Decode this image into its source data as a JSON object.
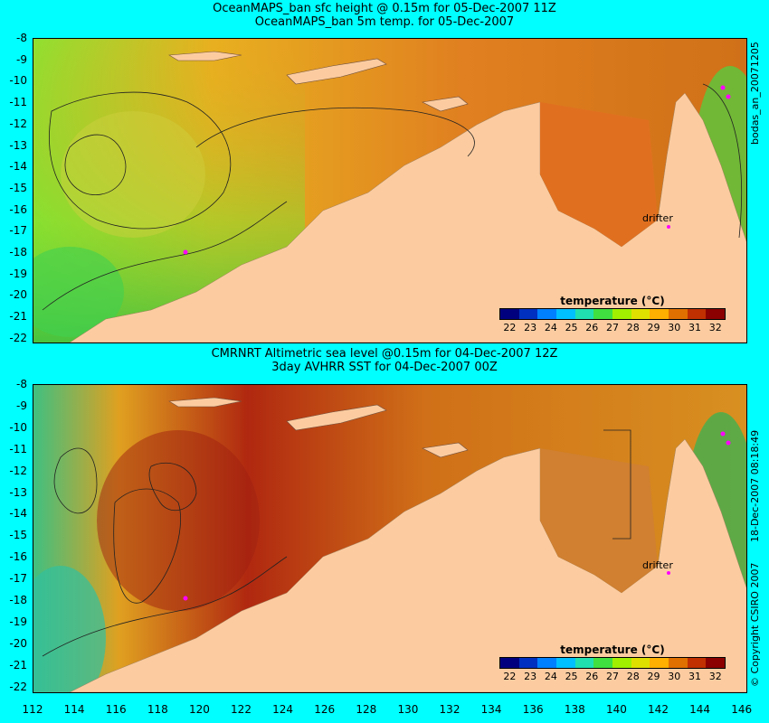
{
  "top_panel": {
    "title1": "OceanMAPS_ban sfc height @ 0.15m for 05-Dec-2007 11Z",
    "title2": "OceanMAPS_ban 5m temp. for 05-Dec-2007",
    "side_text": "bodas_an_20071205",
    "drifter_label": "drifter"
  },
  "bottom_panel": {
    "title1": "CMRNRT Altimetric sea level  @0.15m  for 04-Dec-2007 12Z",
    "title2": "3day AVHRR SST for 04-Dec-2007 00Z",
    "side_text1": "18-Dec-2007 08:18:49",
    "side_text2": "© Copyright CSIRO 2007",
    "drifter_label": "drifter"
  },
  "legend": {
    "title": "temperature (°C)",
    "ticks": [
      "22",
      "23",
      "24",
      "25",
      "26",
      "27",
      "28",
      "29",
      "30",
      "31",
      "32"
    ],
    "colors": [
      "#00007f",
      "#0030c0",
      "#0080ff",
      "#00c0ff",
      "#20e0b0",
      "#40e040",
      "#a0f000",
      "#e0e000",
      "#ffb000",
      "#e07000",
      "#c03000",
      "#8b0000"
    ]
  },
  "y_axis_labels": [
    "-8",
    "-9",
    "-10",
    "-11",
    "-12",
    "-13",
    "-14",
    "-15",
    "-16",
    "-17",
    "-18",
    "-19",
    "-20",
    "-21",
    "-22"
  ],
  "x_axis_labels": [
    "112",
    "114",
    "116",
    "118",
    "120",
    "122",
    "124",
    "126",
    "128",
    "130",
    "132",
    "134",
    "136",
    "138",
    "140",
    "142",
    "144",
    "146"
  ],
  "colors": {
    "background": "#00ffff",
    "land": "#fccca0",
    "island": "#fccca0",
    "drifter": "#ff00ff"
  }
}
